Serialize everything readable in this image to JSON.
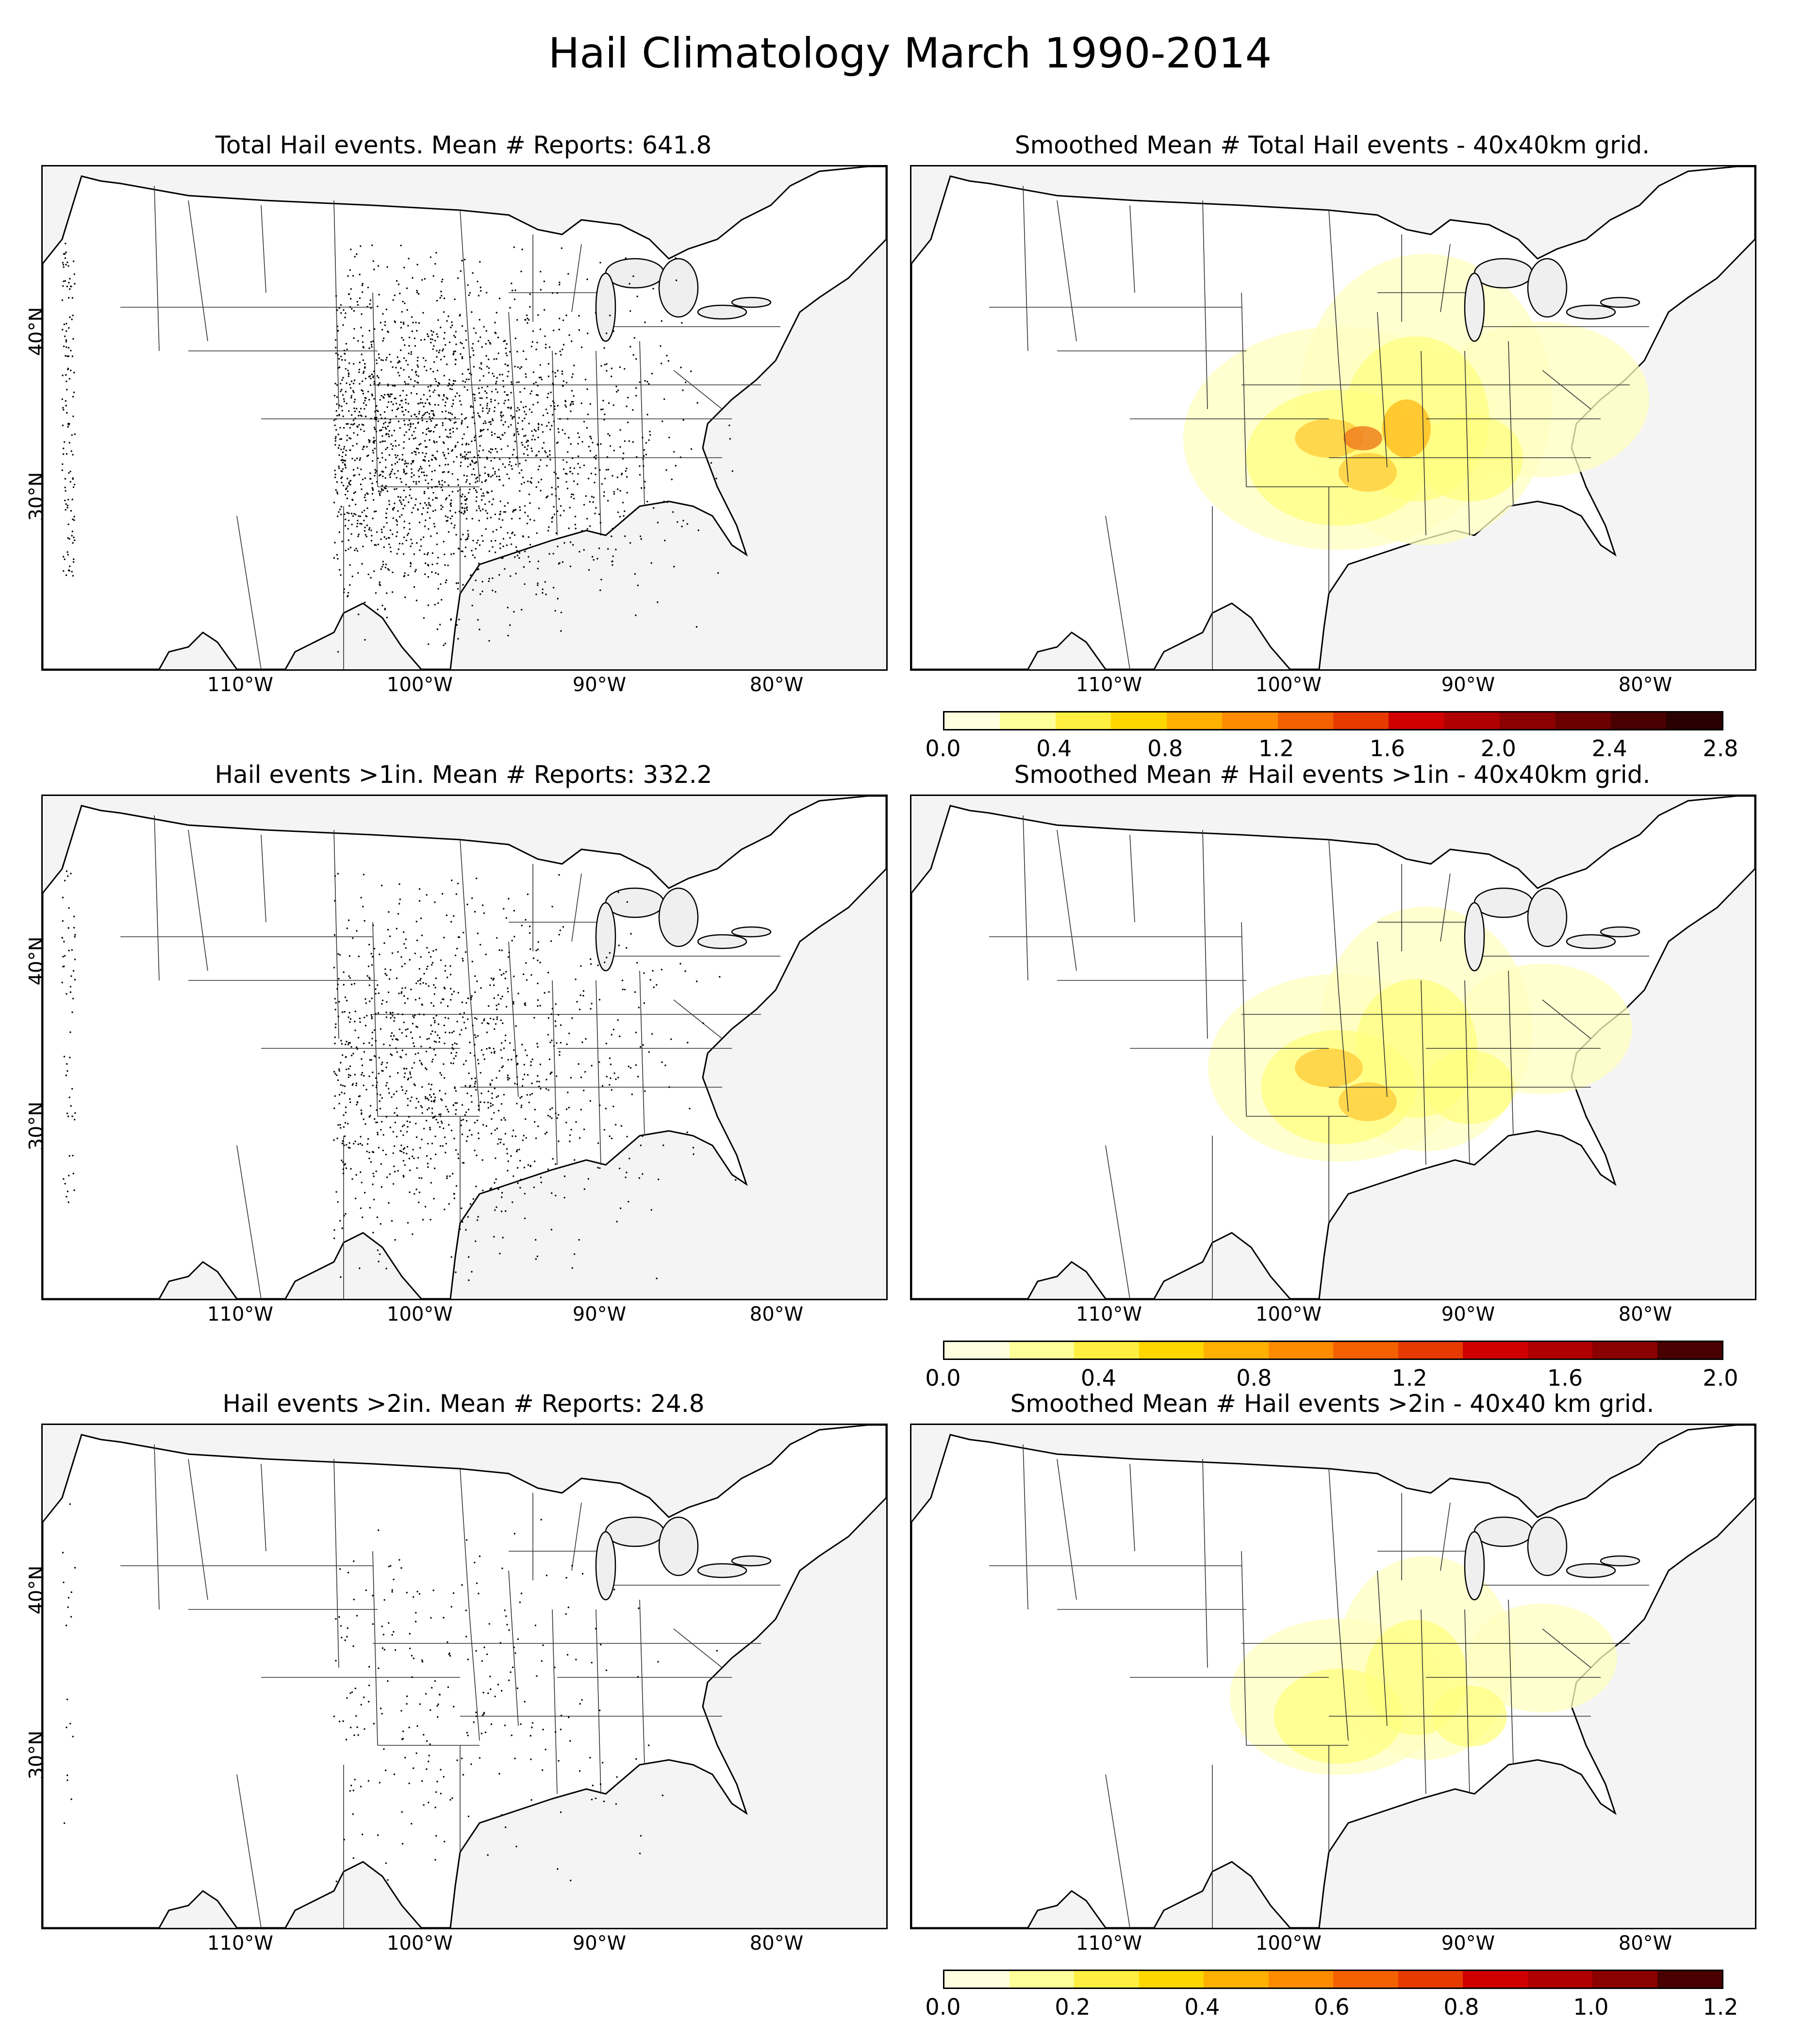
{
  "title": "Hail Climatology March 1990-2014",
  "lon_labels": [
    "110°W",
    "100°W",
    "90°W",
    "80°W"
  ],
  "lat_labels": [
    "40°N",
    "30°N"
  ],
  "panels": [
    {
      "title": "Total Hail events. Mean # Reports: 641.8",
      "kind": "dots",
      "density": 1.0
    },
    {
      "title": "Smoothed Mean # Total Hail events - 40x40km grid.",
      "kind": "heat",
      "intensity": 1.0,
      "colorbar": {
        "ticks": [
          "0.0",
          "0.4",
          "0.8",
          "1.2",
          "1.6",
          "2.0",
          "2.4",
          "2.8"
        ],
        "colors": [
          "#ffffe0",
          "#ffff99",
          "#ffef40",
          "#ffd700",
          "#ffb000",
          "#ff8c00",
          "#f36000",
          "#e63a00",
          "#d00000",
          "#b00000",
          "#8b0000",
          "#6b0000",
          "#4a0000",
          "#2a0000"
        ]
      }
    },
    {
      "title": "Hail events >1in. Mean # Reports: 332.2",
      "kind": "dots",
      "density": 0.55
    },
    {
      "title": "Smoothed Mean # Hail events >1in - 40x40km grid.",
      "kind": "heat",
      "intensity": 0.6,
      "colorbar": {
        "ticks": [
          "0.0",
          "0.4",
          "0.8",
          "1.2",
          "1.6",
          "2.0"
        ],
        "colors": [
          "#ffffe0",
          "#ffff99",
          "#ffef40",
          "#ffd700",
          "#ffb000",
          "#ff8c00",
          "#f36000",
          "#e63a00",
          "#d00000",
          "#b00000",
          "#8b0000",
          "#4a0000"
        ]
      }
    },
    {
      "title": "Hail events >2in. Mean # Reports: 24.8",
      "kind": "dots",
      "density": 0.12
    },
    {
      "title": "Smoothed Mean # Hail events >2in - 40x40 km grid.",
      "kind": "heat",
      "intensity": 0.25,
      "colorbar": {
        "ticks": [
          "0.0",
          "0.2",
          "0.4",
          "0.6",
          "0.8",
          "1.0",
          "1.2"
        ],
        "colors": [
          "#ffffe0",
          "#ffff99",
          "#ffef40",
          "#ffd700",
          "#ffb000",
          "#ff8c00",
          "#f36000",
          "#e63a00",
          "#d00000",
          "#b00000",
          "#8b0000",
          "#4a0000"
        ]
      }
    }
  ]
}
